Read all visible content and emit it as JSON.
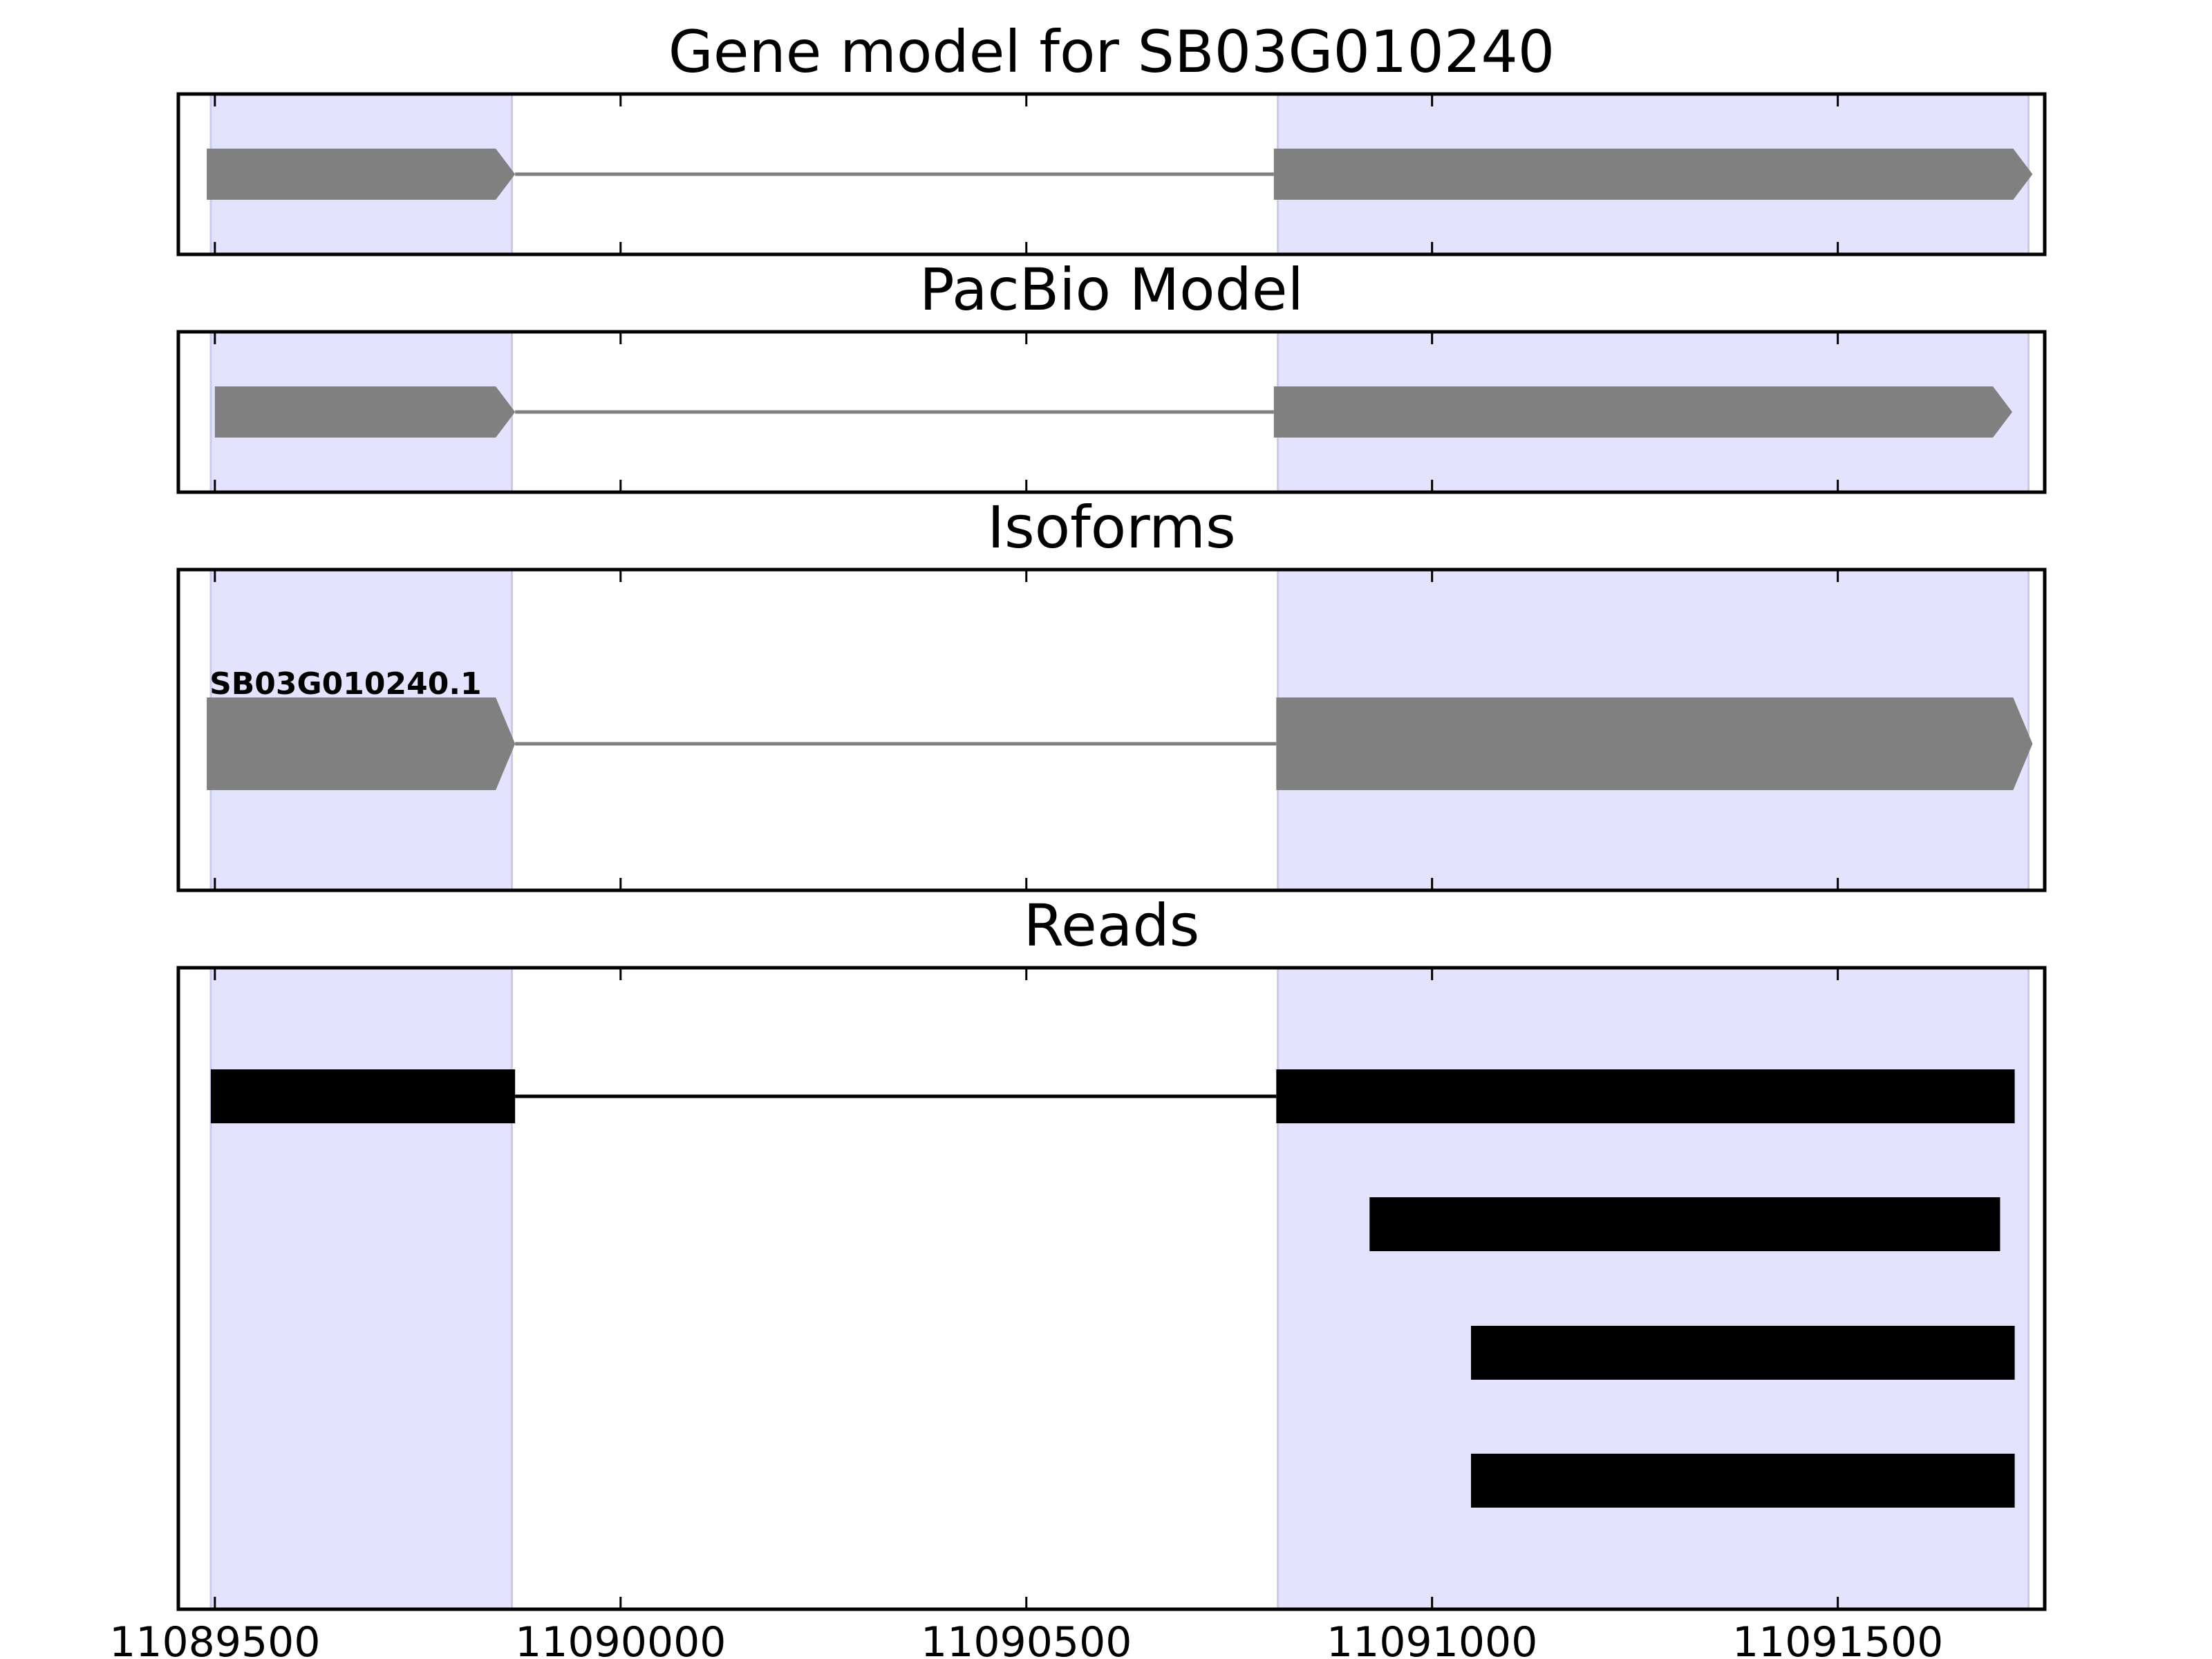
{
  "chart_data": {
    "type": "gene-model",
    "x_range": [
      11089455,
      11091755
    ],
    "x_ticks": [
      11089500,
      11090000,
      11090500,
      11091000,
      11091500
    ],
    "x_tick_labels": [
      "11089500",
      "11090000",
      "11090500",
      "11091000",
      "11091500"
    ],
    "exon_highlights": [
      [
        11089495,
        11089866
      ],
      [
        11090810,
        11091735
      ]
    ],
    "panels": [
      {
        "key": "gene",
        "title": "Gene model for SB03G010240",
        "color": "#808080",
        "features": [
          {
            "exons": [
              [
                11089490,
                11089870
              ],
              [
                11090805,
                11091740
              ]
            ]
          }
        ]
      },
      {
        "key": "pacbio",
        "title": "PacBio Model",
        "color": "#808080",
        "features": [
          {
            "exons": [
              [
                11089500,
                11089870
              ],
              [
                11090805,
                11091715
              ]
            ]
          }
        ]
      },
      {
        "key": "isoforms",
        "title": "Isoforms",
        "color": "#808080",
        "features": [
          {
            "label": "SB03G010240.1",
            "exons": [
              [
                11089490,
                11089870
              ],
              [
                11090808,
                11091740
              ]
            ]
          }
        ]
      },
      {
        "key": "reads",
        "title": "Reads",
        "color": "#000000",
        "features": [
          {
            "exons": [
              [
                11089495,
                11089870
              ],
              [
                11090808,
                11091718
              ]
            ]
          },
          {
            "exons": [
              [
                11090923,
                11091700
              ]
            ]
          },
          {
            "exons": [
              [
                11091048,
                11091718
              ]
            ]
          },
          {
            "exons": [
              [
                11091048,
                11091718
              ]
            ]
          }
        ]
      }
    ]
  }
}
